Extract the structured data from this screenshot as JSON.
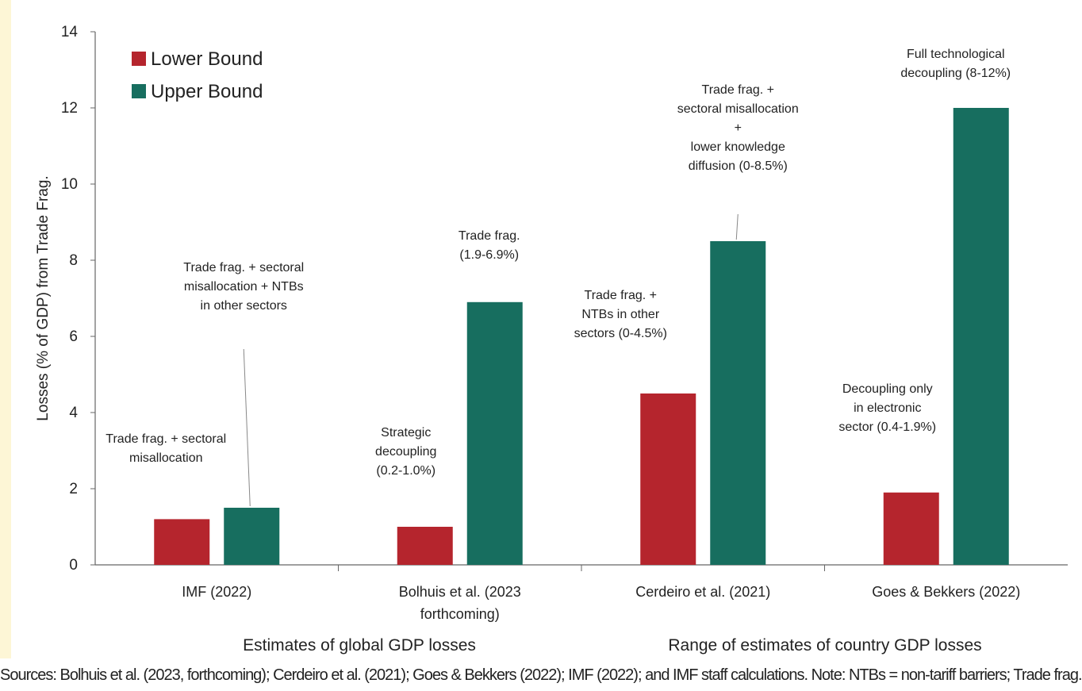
{
  "chart_data": {
    "type": "bar",
    "ylabel": "Losses (% of GDP) from Trade Frag.",
    "ylim": [
      0,
      14
    ],
    "yticks": [
      0,
      2,
      4,
      6,
      8,
      10,
      12,
      14
    ],
    "categories": [
      "IMF (2022)",
      "Bolhuis et al. (2023\nforthcoming)",
      "Cerdeiro et al. (2021)",
      "Goes & Bekkers (2022)"
    ],
    "series": [
      {
        "name": "Lower Bound",
        "color": "#b5252d",
        "values": [
          1.2,
          1.0,
          4.5,
          1.9
        ]
      },
      {
        "name": "Upper Bound",
        "color": "#176e5f",
        "values": [
          1.5,
          6.9,
          8.5,
          12.0
        ]
      }
    ],
    "groups": [
      "Estimates of global GDP losses",
      "Range of estimates of country GDP losses"
    ],
    "annotations": [
      {
        "text": "Trade frag. + sectoral\nmisallocation",
        "category": 0,
        "series": 0
      },
      {
        "text": "Trade frag. + sectoral\nmisallocation + NTBs\nin other sectors",
        "category": 0,
        "series": 1
      },
      {
        "text": "Strategic\ndecoupling\n(0.2-1.0%)",
        "category": 1,
        "series": 0
      },
      {
        "text": "Trade frag.\n(1.9-6.9%)",
        "category": 1,
        "series": 1
      },
      {
        "text": "Trade frag. +\nNTBs in other\nsectors (0-4.5%)",
        "category": 2,
        "series": 0
      },
      {
        "text": "Trade frag. +\nsectoral misallocation\n+\nlower knowledge\ndiffusion (0-8.5%)",
        "category": 2,
        "series": 1
      },
      {
        "text": "Decoupling only\nin electronic\nsector (0.4-1.9%)",
        "category": 3,
        "series": 0
      },
      {
        "text": "Full technological\ndecoupling (8-12%)",
        "category": 3,
        "series": 1
      }
    ],
    "legend_position": "top-left",
    "grid": false
  },
  "footer": {
    "caption": "Sources: Bolhuis et al. (2023, forthcoming); Cerdeiro et al. (2021); Goes & Bekkers (2022); IMF (2022); and IMF staff calculations. Note: NTBs = non-tariff barriers; Trade frag. = trade fragmentation; the range in parentheses refers to the losses in GDP from the scenario; estimates vary by country and methodology"
  }
}
